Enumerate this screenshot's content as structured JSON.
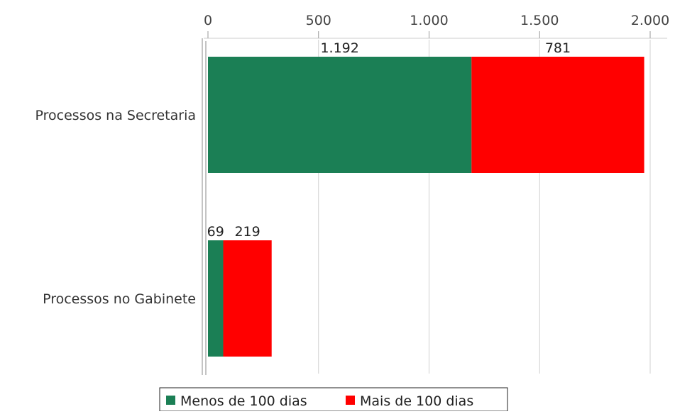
{
  "chart_data": {
    "type": "bar",
    "orientation": "horizontal",
    "stacked": true,
    "categories": [
      "Processos na Secretaria",
      "Processos no Gabinete"
    ],
    "series": [
      {
        "name": "Menos de 100 dias",
        "values": [
          1192,
          69
        ],
        "labels": [
          "1.192",
          "69"
        ],
        "color": "#1b7f55"
      },
      {
        "name": "Mais de 100 dias",
        "values": [
          781,
          219
        ],
        "labels": [
          "781",
          "219"
        ],
        "color": "#ff0000"
      }
    ],
    "x_ticks": [
      0,
      500,
      1000,
      1500,
      2000
    ],
    "x_tick_labels": [
      "0",
      "500",
      "1.000",
      "1.500",
      "2.000"
    ],
    "xlim": [
      0,
      2000
    ],
    "axis_position": "top",
    "grid": true,
    "legend_position": "bottom"
  }
}
